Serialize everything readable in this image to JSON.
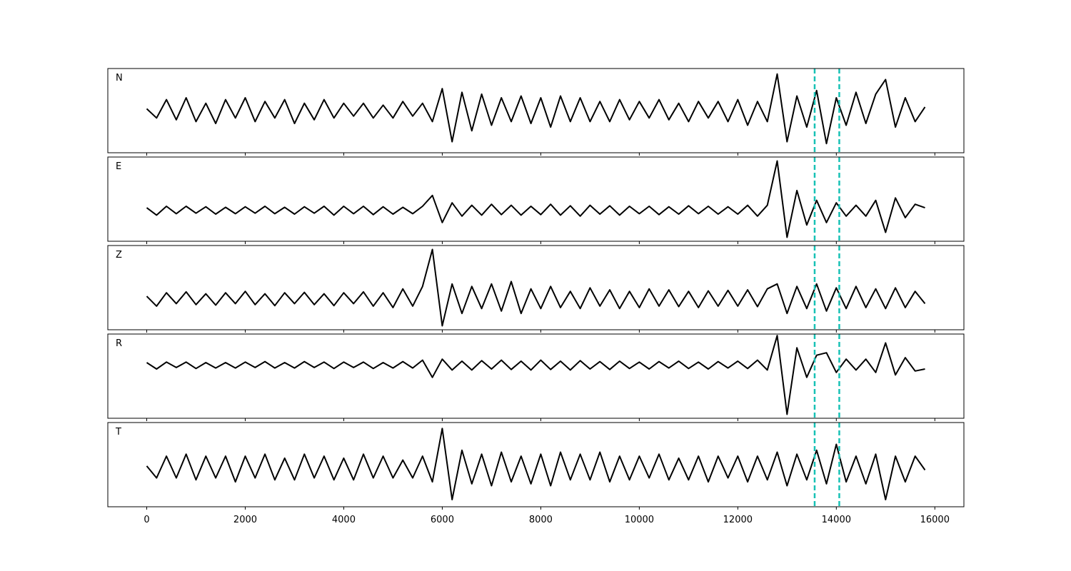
{
  "chart_data": {
    "type": "line",
    "x": [
      0,
      200,
      400,
      600,
      800,
      1000,
      1200,
      1400,
      1600,
      1800,
      2000,
      2200,
      2400,
      2600,
      2800,
      3000,
      3200,
      3400,
      3600,
      3800,
      4000,
      4200,
      4400,
      4600,
      4800,
      5000,
      5200,
      5400,
      5600,
      5800,
      6000,
      6200,
      6400,
      6600,
      6800,
      7000,
      7200,
      7400,
      7600,
      7800,
      8000,
      8200,
      8400,
      8600,
      8800,
      9000,
      9200,
      9400,
      9600,
      9800,
      10000,
      10200,
      10400,
      10600,
      10800,
      11000,
      11200,
      11400,
      11600,
      11800,
      12000,
      12200,
      12400,
      12600,
      12800,
      13000,
      13200,
      13400,
      13600,
      13800,
      14000,
      14200,
      14400,
      14600,
      14800,
      15000,
      15200,
      15400,
      15600,
      15800
    ],
    "xlim": [
      -790,
      16590
    ],
    "xticks": [
      0,
      2000,
      4000,
      6000,
      8000,
      10000,
      12000,
      14000,
      16000
    ],
    "vlines": [
      13560,
      14060
    ],
    "vline_color": "#17c1b5",
    "series": [
      {
        "name": "N",
        "color": "#000000",
        "ylim": [
          -1.15,
          1.15
        ],
        "values": [
          0.05,
          -0.2,
          0.3,
          -0.25,
          0.35,
          -0.3,
          0.2,
          -0.35,
          0.3,
          -0.2,
          0.35,
          -0.3,
          0.25,
          -0.2,
          0.3,
          -0.35,
          0.2,
          -0.25,
          0.3,
          -0.2,
          0.2,
          -0.15,
          0.2,
          -0.2,
          0.15,
          -0.2,
          0.25,
          -0.15,
          0.2,
          -0.3,
          0.6,
          -0.85,
          0.5,
          -0.55,
          0.45,
          -0.4,
          0.35,
          -0.3,
          0.4,
          -0.35,
          0.35,
          -0.45,
          0.4,
          -0.3,
          0.35,
          -0.3,
          0.25,
          -0.3,
          0.3,
          -0.25,
          0.25,
          -0.2,
          0.3,
          -0.25,
          0.2,
          -0.3,
          0.25,
          -0.2,
          0.25,
          -0.3,
          0.3,
          -0.4,
          0.25,
          -0.3,
          1.0,
          -0.85,
          0.4,
          -0.45,
          0.55,
          -0.9,
          0.35,
          -0.4,
          0.5,
          -0.35,
          0.45,
          0.85,
          -0.45,
          0.35,
          -0.3,
          0.1
        ]
      },
      {
        "name": "E",
        "color": "#000000",
        "ylim": [
          -0.63,
          1.08
        ],
        "values": [
          0.05,
          -0.1,
          0.08,
          -0.07,
          0.08,
          -0.06,
          0.07,
          -0.08,
          0.06,
          -0.07,
          0.07,
          -0.06,
          0.08,
          -0.07,
          0.06,
          -0.08,
          0.07,
          -0.06,
          0.08,
          -0.1,
          0.08,
          -0.07,
          0.08,
          -0.09,
          0.07,
          -0.08,
          0.06,
          -0.07,
          0.08,
          0.3,
          -0.25,
          0.15,
          -0.12,
          0.1,
          -0.1,
          0.12,
          -0.09,
          0.1,
          -0.1,
          0.08,
          -0.09,
          0.12,
          -0.1,
          0.09,
          -0.12,
          0.1,
          -0.08,
          0.09,
          -0.1,
          0.08,
          -0.07,
          0.08,
          -0.09,
          0.07,
          -0.08,
          0.09,
          -0.07,
          0.08,
          -0.08,
          0.07,
          -0.08,
          0.1,
          -0.12,
          0.1,
          1.0,
          -0.55,
          0.4,
          -0.3,
          0.2,
          -0.25,
          0.15,
          -0.12,
          0.1,
          -0.12,
          0.2,
          -0.45,
          0.25,
          -0.15,
          0.12,
          0.05
        ]
      },
      {
        "name": "Z",
        "color": "#000000",
        "ylim": [
          -0.63,
          1.08
        ],
        "values": [
          0.05,
          -0.15,
          0.12,
          -0.1,
          0.14,
          -0.12,
          0.1,
          -0.13,
          0.12,
          -0.1,
          0.15,
          -0.12,
          0.1,
          -0.14,
          0.12,
          -0.1,
          0.13,
          -0.12,
          0.1,
          -0.14,
          0.12,
          -0.1,
          0.14,
          -0.15,
          0.12,
          -0.18,
          0.2,
          -0.15,
          0.25,
          1.0,
          -0.55,
          0.3,
          -0.3,
          0.25,
          -0.2,
          0.3,
          -0.25,
          0.35,
          -0.3,
          0.2,
          -0.2,
          0.25,
          -0.18,
          0.15,
          -0.2,
          0.22,
          -0.15,
          0.18,
          -0.2,
          0.15,
          -0.18,
          0.2,
          -0.15,
          0.18,
          -0.16,
          0.15,
          -0.18,
          0.16,
          -0.15,
          0.17,
          -0.15,
          0.18,
          -0.16,
          0.2,
          0.3,
          -0.3,
          0.25,
          -0.2,
          0.3,
          -0.25,
          0.22,
          -0.2,
          0.25,
          -0.18,
          0.2,
          -0.2,
          0.22,
          -0.18,
          0.15,
          -0.1
        ]
      },
      {
        "name": "R",
        "color": "#000000",
        "ylim": [
          -1.08,
          0.63
        ],
        "values": [
          0.05,
          -0.08,
          0.06,
          -0.05,
          0.06,
          -0.07,
          0.05,
          -0.06,
          0.05,
          -0.06,
          0.06,
          -0.05,
          0.07,
          -0.06,
          0.05,
          -0.06,
          0.07,
          -0.05,
          0.06,
          -0.07,
          0.06,
          -0.05,
          0.06,
          -0.07,
          0.05,
          -0.06,
          0.07,
          -0.06,
          0.1,
          -0.25,
          0.12,
          -0.1,
          0.08,
          -0.1,
          0.09,
          -0.08,
          0.1,
          -0.09,
          0.08,
          -0.1,
          0.1,
          -0.09,
          0.08,
          -0.1,
          0.09,
          -0.08,
          0.07,
          -0.09,
          0.08,
          -0.07,
          0.06,
          -0.08,
          0.07,
          -0.06,
          0.08,
          -0.07,
          0.06,
          -0.08,
          0.07,
          -0.06,
          0.08,
          -0.07,
          0.1,
          -0.1,
          0.6,
          -1.0,
          0.35,
          -0.25,
          0.2,
          0.25,
          -0.15,
          0.12,
          -0.1,
          0.12,
          -0.15,
          0.45,
          -0.2,
          0.15,
          -0.12,
          -0.08
        ]
      },
      {
        "name": "T",
        "color": "#000000",
        "ylim": [
          -0.98,
          1.15
        ],
        "values": [
          0.05,
          -0.25,
          0.3,
          -0.25,
          0.35,
          -0.3,
          0.3,
          -0.25,
          0.3,
          -0.35,
          0.3,
          -0.25,
          0.35,
          -0.3,
          0.25,
          -0.3,
          0.35,
          -0.25,
          0.3,
          -0.3,
          0.25,
          -0.3,
          0.35,
          -0.25,
          0.3,
          -0.25,
          0.2,
          -0.25,
          0.3,
          -0.35,
          1.0,
          -0.8,
          0.45,
          -0.4,
          0.35,
          -0.45,
          0.4,
          -0.35,
          0.3,
          -0.4,
          0.35,
          -0.45,
          0.4,
          -0.3,
          0.35,
          -0.3,
          0.4,
          -0.35,
          0.3,
          -0.3,
          0.3,
          -0.25,
          0.35,
          -0.3,
          0.25,
          -0.3,
          0.3,
          -0.35,
          0.3,
          -0.25,
          0.3,
          -0.35,
          0.3,
          -0.3,
          0.4,
          -0.45,
          0.35,
          -0.3,
          0.45,
          -0.4,
          0.6,
          -0.35,
          0.3,
          -0.4,
          0.35,
          -0.8,
          0.3,
          -0.35,
          0.3,
          -0.05
        ]
      }
    ]
  }
}
